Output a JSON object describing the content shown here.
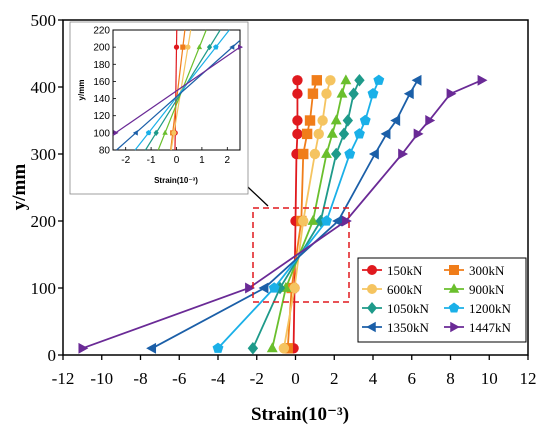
{
  "chart_data": {
    "type": "line",
    "title": "",
    "xlabel": "Strain",
    "xlabel_unit": "(10⁻³)",
    "ylabel": "y/mm",
    "xlim": [
      -12,
      12
    ],
    "ylim": [
      0,
      500
    ],
    "x_ticks": [
      "-12",
      "-10",
      "-8",
      "-6",
      "-4",
      "-2",
      "0",
      "2",
      "4",
      "6",
      "8",
      "10",
      "12"
    ],
    "y_ticks": [
      "0",
      "100",
      "200",
      "300",
      "400",
      "500"
    ],
    "grid": false,
    "legend_position": "bottom-right",
    "y_levels": [
      10,
      100,
      200,
      300,
      330,
      350,
      390,
      410
    ],
    "series": [
      {
        "name": "150kN",
        "color": "#e0191e",
        "marker": "circle",
        "x": [
          -0.1,
          -0.05,
          0.0,
          0.05,
          0.1,
          0.1,
          0.1,
          0.1
        ]
      },
      {
        "name": "300kN",
        "color": "#f07d1a",
        "marker": "square",
        "x": [
          -0.4,
          -0.2,
          0.3,
          0.4,
          0.6,
          0.75,
          0.9,
          1.1
        ]
      },
      {
        "name": "600kN",
        "color": "#f5c460",
        "marker": "circle",
        "x": [
          -0.6,
          -0.05,
          0.4,
          1.0,
          1.2,
          1.4,
          1.6,
          1.8
        ]
      },
      {
        "name": "900kN",
        "color": "#6abf2d",
        "marker": "triangle",
        "x": [
          -1.2,
          -0.5,
          0.9,
          1.6,
          1.9,
          2.1,
          2.4,
          2.6
        ]
      },
      {
        "name": "1050kN",
        "color": "#1e9a8a",
        "marker": "diamond",
        "x": [
          -2.2,
          -0.8,
          1.3,
          2.1,
          2.5,
          2.7,
          3.0,
          3.3
        ]
      },
      {
        "name": "1200kN",
        "color": "#1ab0e8",
        "marker": "pentagon",
        "x": [
          -4.0,
          -1.1,
          1.6,
          2.8,
          3.3,
          3.6,
          4.0,
          4.3
        ]
      },
      {
        "name": "1350kN",
        "color": "#1b5fa8",
        "marker": "tri-left",
        "x": [
          -7.4,
          -1.6,
          2.2,
          4.1,
          4.7,
          5.2,
          5.9,
          6.3
        ]
      },
      {
        "name": "1447kN",
        "color": "#6a2a96",
        "marker": "tri-right",
        "x": [
          -11.0,
          -2.4,
          2.6,
          5.5,
          6.3,
          6.9,
          8.0,
          9.6
        ]
      }
    ],
    "inset": {
      "xlim": [
        -2.5,
        2.5
      ],
      "ylim": [
        80,
        220
      ],
      "x_ticks": [
        "-2",
        "-1",
        "0",
        "1",
        "2"
      ],
      "y_ticks": [
        "80",
        "100",
        "120",
        "140",
        "160",
        "180",
        "200",
        "220"
      ],
      "xlabel": "Strain",
      "xlabel_unit": "(10⁻³)",
      "ylabel": "y/mm",
      "y_levels": [
        100,
        200
      ],
      "series_x": [
        [
          -0.05,
          0.0
        ],
        [
          -0.15,
          0.25
        ],
        [
          -0.1,
          0.45
        ],
        [
          -0.45,
          0.9
        ],
        [
          -0.8,
          1.3
        ],
        [
          -1.1,
          1.55
        ],
        [
          -1.6,
          2.2
        ],
        [
          -2.4,
          2.5
        ]
      ]
    }
  }
}
